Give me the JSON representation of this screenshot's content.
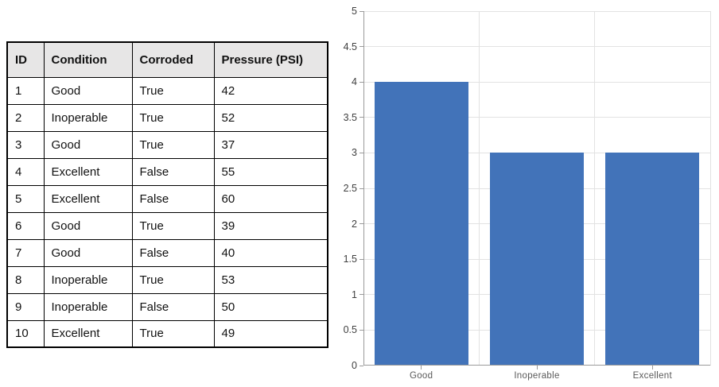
{
  "table": {
    "headers": [
      "ID",
      "Condition",
      "Corroded",
      "Pressure (PSI)"
    ],
    "rows": [
      [
        "1",
        "Good",
        "True",
        "42"
      ],
      [
        "2",
        "Inoperable",
        "True",
        "52"
      ],
      [
        "3",
        "Good",
        "True",
        "37"
      ],
      [
        "4",
        "Excellent",
        "False",
        "55"
      ],
      [
        "5",
        "Excellent",
        "False",
        "60"
      ],
      [
        "6",
        "Good",
        "True",
        "39"
      ],
      [
        "7",
        "Good",
        "False",
        "40"
      ],
      [
        "8",
        "Inoperable",
        "True",
        "53"
      ],
      [
        "9",
        "Inoperable",
        "False",
        "50"
      ],
      [
        "10",
        "Excellent",
        "True",
        "49"
      ]
    ]
  },
  "chart_data": {
    "type": "bar",
    "categories": [
      "Good",
      "Inoperable",
      "Excellent"
    ],
    "values": [
      4,
      3,
      3
    ],
    "title": "",
    "xlabel": "",
    "ylabel": "",
    "ylim": [
      0,
      5
    ],
    "ytick_step": 0.5,
    "ytick_labels": [
      "0",
      "0.5",
      "1",
      "1.5",
      "2",
      "2.5",
      "3",
      "3.5",
      "4",
      "4.5",
      "5"
    ],
    "grid": true,
    "legend": "none",
    "bar_color": "#4273b9"
  },
  "colors": {
    "table_header_bg": "#e7e6e6",
    "table_border": "#000000",
    "grid_line": "#e2e2e2",
    "axis_line": "#9a9a9a",
    "tick_label": "#3f3f3f",
    "category_label": "#595959",
    "bar": "#4273b9"
  }
}
